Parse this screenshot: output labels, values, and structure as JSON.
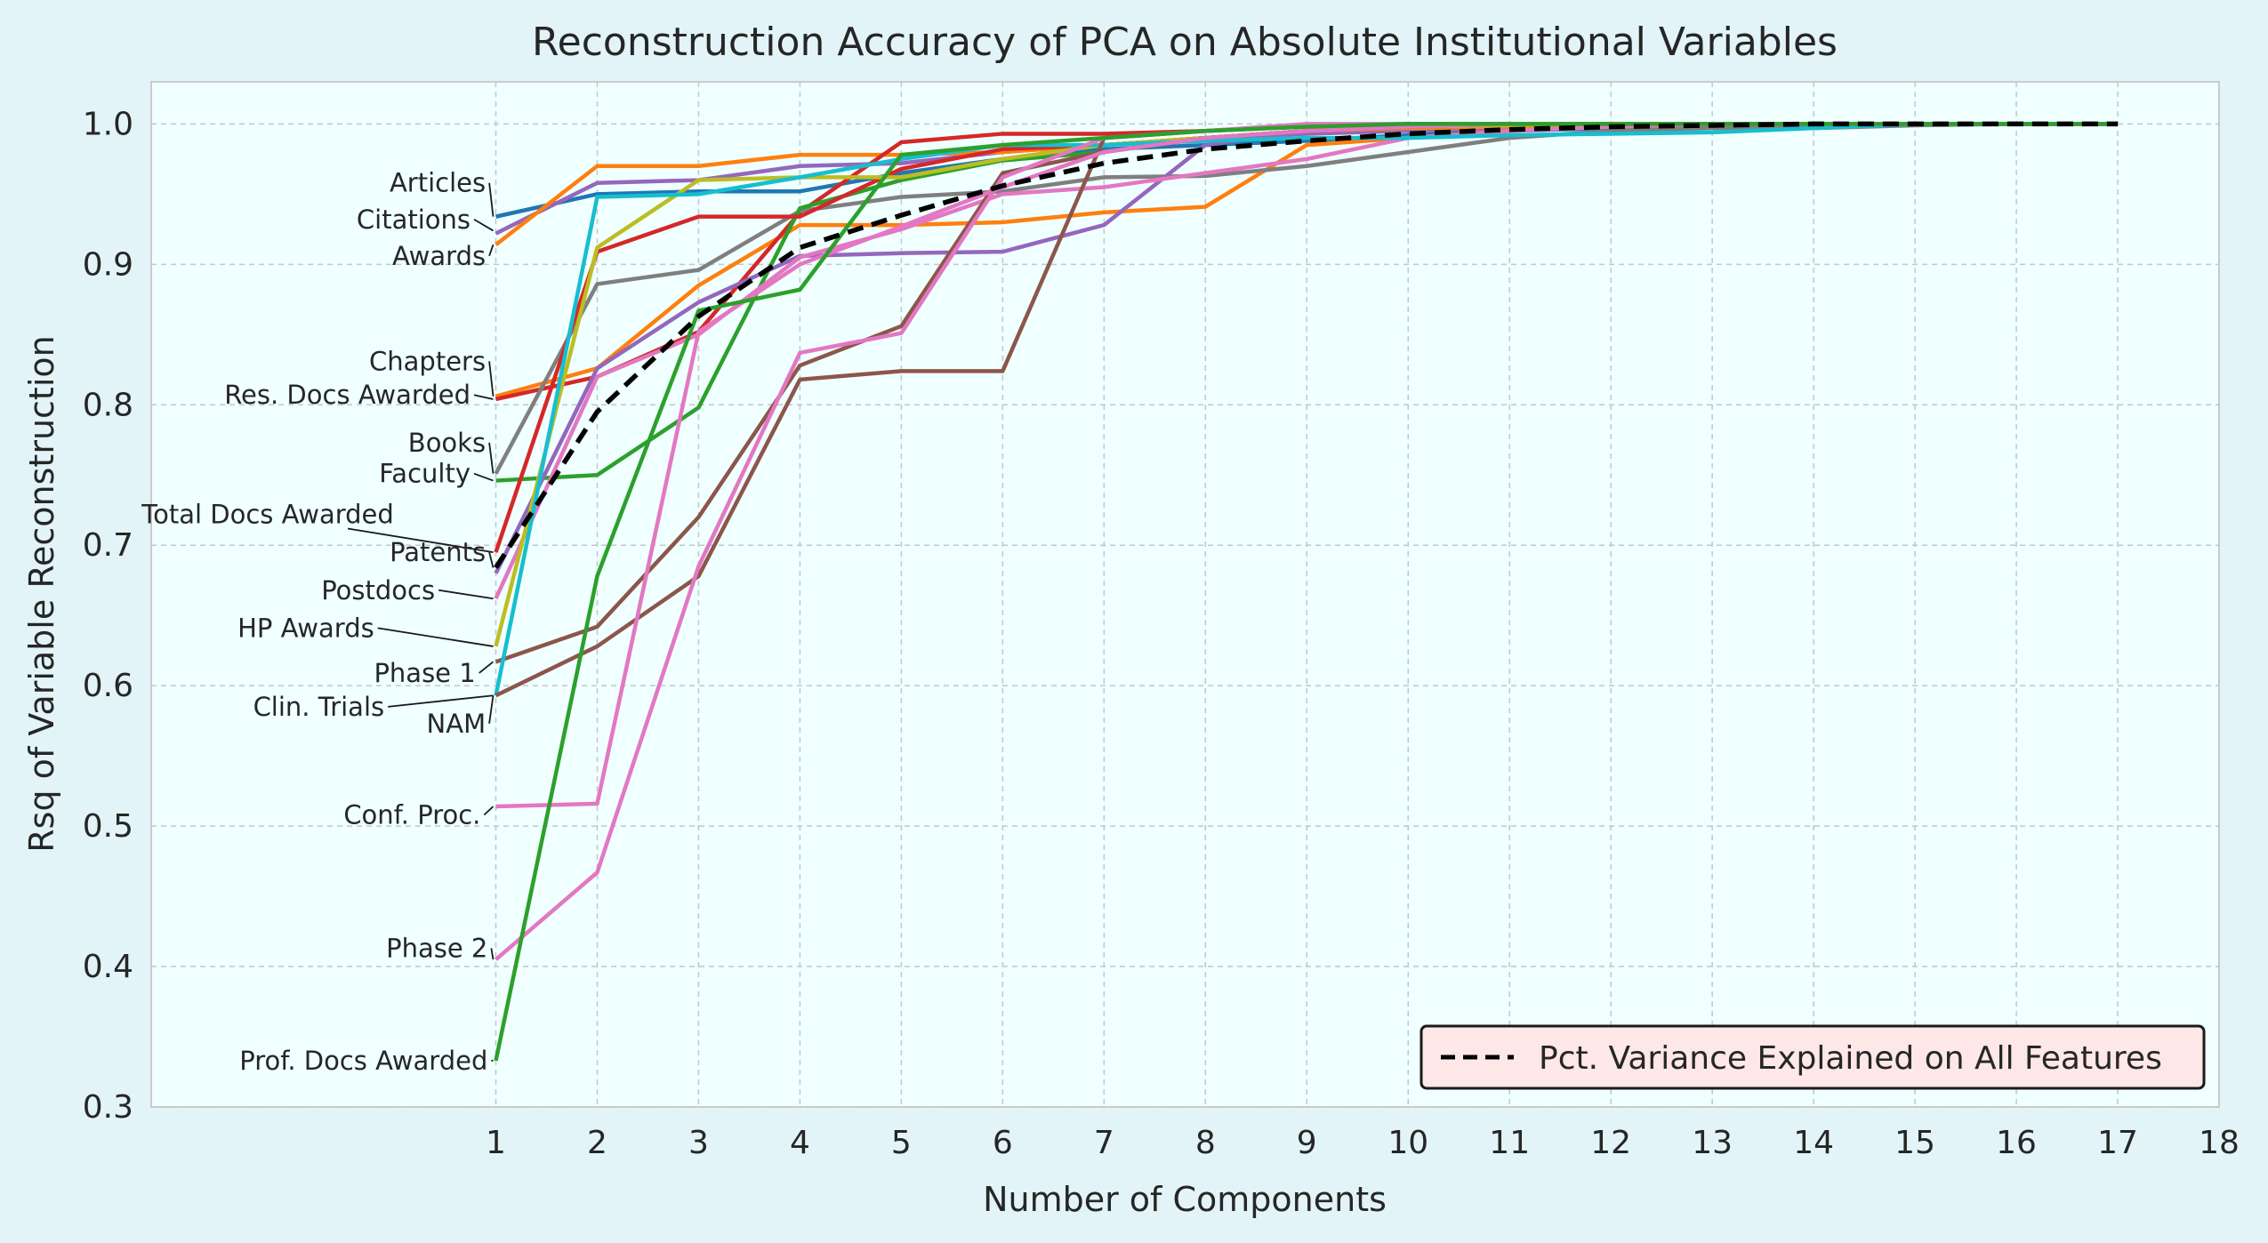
{
  "chart_data": {
    "type": "line",
    "title": "Reconstruction Accuracy of PCA on Absolute Institutional Variables",
    "xlabel": "Number of Components",
    "ylabel": "Rsq of Variable Reconstruction",
    "xlim": [
      -2.4,
      18
    ],
    "ylim": [
      0.3,
      1.03
    ],
    "xticks": [
      1,
      2,
      3,
      4,
      5,
      6,
      7,
      8,
      9,
      10,
      11,
      12,
      13,
      14,
      15,
      16,
      17,
      18
    ],
    "yticks": [
      0.3,
      0.4,
      0.5,
      0.6,
      0.7,
      0.8,
      0.9,
      1.0
    ],
    "x": [
      1,
      2,
      3,
      4,
      5,
      6,
      7,
      8,
      9,
      10,
      11,
      12,
      13,
      14,
      15,
      16,
      17
    ],
    "grid": true,
    "legend_position": "lower-right",
    "legend": [
      {
        "label": "Pct. Variance Explained on All Features",
        "color": "#000000",
        "style": "dashed"
      }
    ],
    "series": [
      {
        "name": "Articles",
        "color": "#1f77b4",
        "values": [
          0.934,
          0.95,
          0.952,
          0.952,
          0.965,
          0.975,
          0.982,
          0.985,
          0.988,
          0.992,
          0.995,
          0.997,
          0.998,
          0.999,
          1.0,
          1.0,
          1.0
        ]
      },
      {
        "name": "Citations",
        "color": "#9467bd",
        "values": [
          0.922,
          0.958,
          0.96,
          0.97,
          0.972,
          0.98,
          0.985,
          0.99,
          0.993,
          0.995,
          0.997,
          0.998,
          0.999,
          1.0,
          1.0,
          1.0,
          1.0
        ]
      },
      {
        "name": "Awards",
        "color": "#ff7f0e",
        "values": [
          0.914,
          0.97,
          0.97,
          0.978,
          0.978,
          0.98,
          0.985,
          0.99,
          0.995,
          0.997,
          0.998,
          0.999,
          1.0,
          1.0,
          1.0,
          1.0,
          1.0
        ]
      },
      {
        "name": "Chapters",
        "color": "#ff7f0e",
        "values": [
          0.806,
          0.826,
          0.885,
          0.928,
          0.928,
          0.93,
          0.937,
          0.941,
          0.985,
          0.99,
          0.995,
          0.998,
          1.0,
          1.0,
          1.0,
          1.0,
          1.0
        ]
      },
      {
        "name": "Res. Docs Awarded",
        "color": "#d62728",
        "values": [
          0.804,
          0.82,
          0.852,
          0.937,
          0.987,
          0.993,
          0.993,
          0.995,
          0.999,
          1.0,
          1.0,
          1.0,
          1.0,
          1.0,
          1.0,
          1.0,
          1.0
        ]
      },
      {
        "name": "Books",
        "color": "#7f7f7f",
        "values": [
          0.751,
          0.886,
          0.896,
          0.938,
          0.948,
          0.952,
          0.962,
          0.963,
          0.97,
          0.98,
          0.99,
          0.995,
          0.997,
          0.997,
          0.999,
          1.0,
          1.0
        ]
      },
      {
        "name": "Faculty",
        "color": "#2ca02c",
        "values": [
          0.746,
          0.75,
          0.798,
          0.94,
          0.96,
          0.974,
          0.98,
          0.99,
          0.995,
          0.998,
          1.0,
          1.0,
          1.0,
          1.0,
          1.0,
          1.0,
          1.0
        ]
      },
      {
        "name": "Total Docs Awarded",
        "color": "#d62728",
        "values": [
          0.695,
          0.909,
          0.934,
          0.934,
          0.968,
          0.982,
          0.985,
          0.99,
          0.995,
          0.998,
          0.999,
          1.0,
          1.0,
          1.0,
          1.0,
          1.0,
          1.0
        ]
      },
      {
        "name": "Patents",
        "color": "#9467bd",
        "values": [
          0.68,
          0.826,
          0.873,
          0.906,
          0.908,
          0.909,
          0.928,
          0.985,
          0.995,
          0.998,
          1.0,
          1.0,
          1.0,
          1.0,
          1.0,
          1.0,
          1.0
        ]
      },
      {
        "name": "Postdocs",
        "color": "#e377c2",
        "values": [
          0.662,
          0.82,
          0.85,
          0.905,
          0.925,
          0.95,
          0.955,
          0.965,
          0.975,
          0.99,
          0.995,
          0.998,
          1.0,
          1.0,
          1.0,
          1.0,
          1.0
        ]
      },
      {
        "name": "HP Awards",
        "color": "#bcbd22",
        "values": [
          0.628,
          0.912,
          0.96,
          0.962,
          0.962,
          0.975,
          0.985,
          0.99,
          0.995,
          0.998,
          0.999,
          1.0,
          1.0,
          1.0,
          1.0,
          1.0,
          1.0
        ]
      },
      {
        "name": "Phase 1",
        "color": "#8c564b",
        "values": [
          0.617,
          0.642,
          0.72,
          0.828,
          0.856,
          0.965,
          0.98,
          0.99,
          0.995,
          0.998,
          1.0,
          1.0,
          1.0,
          1.0,
          1.0,
          1.0,
          1.0
        ]
      },
      {
        "name": "Clin. Trials",
        "color": "#17becf",
        "values": [
          0.593,
          0.948,
          0.95,
          0.962,
          0.975,
          0.985,
          0.985,
          0.988,
          0.99,
          0.99,
          0.992,
          0.993,
          0.994,
          0.997,
          1.0,
          1.0,
          1.0
        ]
      },
      {
        "name": "NAM",
        "color": "#8c564b",
        "values": [
          0.593,
          0.628,
          0.678,
          0.818,
          0.824,
          0.824,
          0.99,
          0.995,
          0.998,
          1.0,
          1.0,
          1.0,
          1.0,
          1.0,
          1.0,
          1.0,
          1.0
        ]
      },
      {
        "name": "Conf. Proc.",
        "color": "#e377c2",
        "values": [
          0.514,
          0.516,
          0.852,
          0.9,
          0.927,
          0.955,
          0.98,
          0.99,
          0.995,
          0.998,
          1.0,
          1.0,
          1.0,
          1.0,
          1.0,
          1.0,
          1.0
        ]
      },
      {
        "name": "Phase 2",
        "color": "#e377c2",
        "values": [
          0.405,
          0.467,
          0.685,
          0.837,
          0.851,
          0.962,
          0.99,
          0.995,
          1.0,
          1.0,
          1.0,
          1.0,
          1.0,
          1.0,
          1.0,
          1.0,
          1.0
        ]
      },
      {
        "name": "Prof. Docs Awarded",
        "color": "#2ca02c",
        "values": [
          0.333,
          0.678,
          0.867,
          0.882,
          0.978,
          0.985,
          0.99,
          0.995,
          0.998,
          1.0,
          1.0,
          1.0,
          1.0,
          1.0,
          1.0,
          1.0,
          1.0
        ]
      },
      {
        "name": "Pct. Variance Explained on All Features",
        "color": "#000000",
        "dashed": true,
        "values": [
          0.684,
          0.795,
          0.863,
          0.912,
          0.935,
          0.956,
          0.972,
          0.982,
          0.988,
          0.993,
          0.996,
          0.998,
          0.999,
          1.0,
          1.0,
          1.0,
          1.0
        ]
      }
    ],
    "annotations": [
      {
        "label": "Articles",
        "text_x": 0.9,
        "text_y": 0.958,
        "anchor": "end",
        "y": 0.934
      },
      {
        "label": "Citations",
        "text_x": 0.75,
        "text_y": 0.932,
        "anchor": "end",
        "y": 0.924
      },
      {
        "label": "Awards",
        "text_x": 0.9,
        "text_y": 0.906,
        "anchor": "end",
        "y": 0.914
      },
      {
        "label": "Chapters",
        "text_x": 0.9,
        "text_y": 0.831,
        "anchor": "end",
        "y": 0.806
      },
      {
        "label": "Res. Docs Awarded",
        "text_x": 0.75,
        "text_y": 0.807,
        "anchor": "end",
        "y": 0.804
      },
      {
        "label": "Books",
        "text_x": 0.9,
        "text_y": 0.773,
        "anchor": "end",
        "y": 0.751
      },
      {
        "label": "Faculty",
        "text_x": 0.75,
        "text_y": 0.751,
        "anchor": "end",
        "y": 0.746
      },
      {
        "label": "Total Docs Awarded",
        "text_x": -1.25,
        "text_y": 0.722,
        "anchor": "middle",
        "y": 0.695
      },
      {
        "label": "Patents",
        "text_x": 0.9,
        "text_y": 0.695,
        "anchor": "end",
        "y": 0.684
      },
      {
        "label": "Postdocs",
        "text_x": 0.4,
        "text_y": 0.668,
        "anchor": "end",
        "y": 0.662
      },
      {
        "label": "HP Awards",
        "text_x": -0.2,
        "text_y": 0.641,
        "anchor": "end",
        "y": 0.628
      },
      {
        "label": "Phase 1",
        "text_x": 0.8,
        "text_y": 0.609,
        "anchor": "end",
        "y": 0.617
      },
      {
        "label": "Clin. Trials",
        "text_x": -0.1,
        "text_y": 0.585,
        "anchor": "end",
        "y": 0.593
      },
      {
        "label": "NAM",
        "text_x": 0.9,
        "text_y": 0.573,
        "anchor": "end",
        "y": 0.593
      },
      {
        "label": "Conf. Proc.",
        "text_x": 0.85,
        "text_y": 0.508,
        "anchor": "end",
        "y": 0.514
      },
      {
        "label": "Phase 2",
        "text_x": 0.92,
        "text_y": 0.413,
        "anchor": "end",
        "y": 0.405
      },
      {
        "label": "Prof. Docs Awarded",
        "text_x": 0.92,
        "text_y": 0.333,
        "anchor": "end",
        "y": 0.333
      }
    ]
  }
}
